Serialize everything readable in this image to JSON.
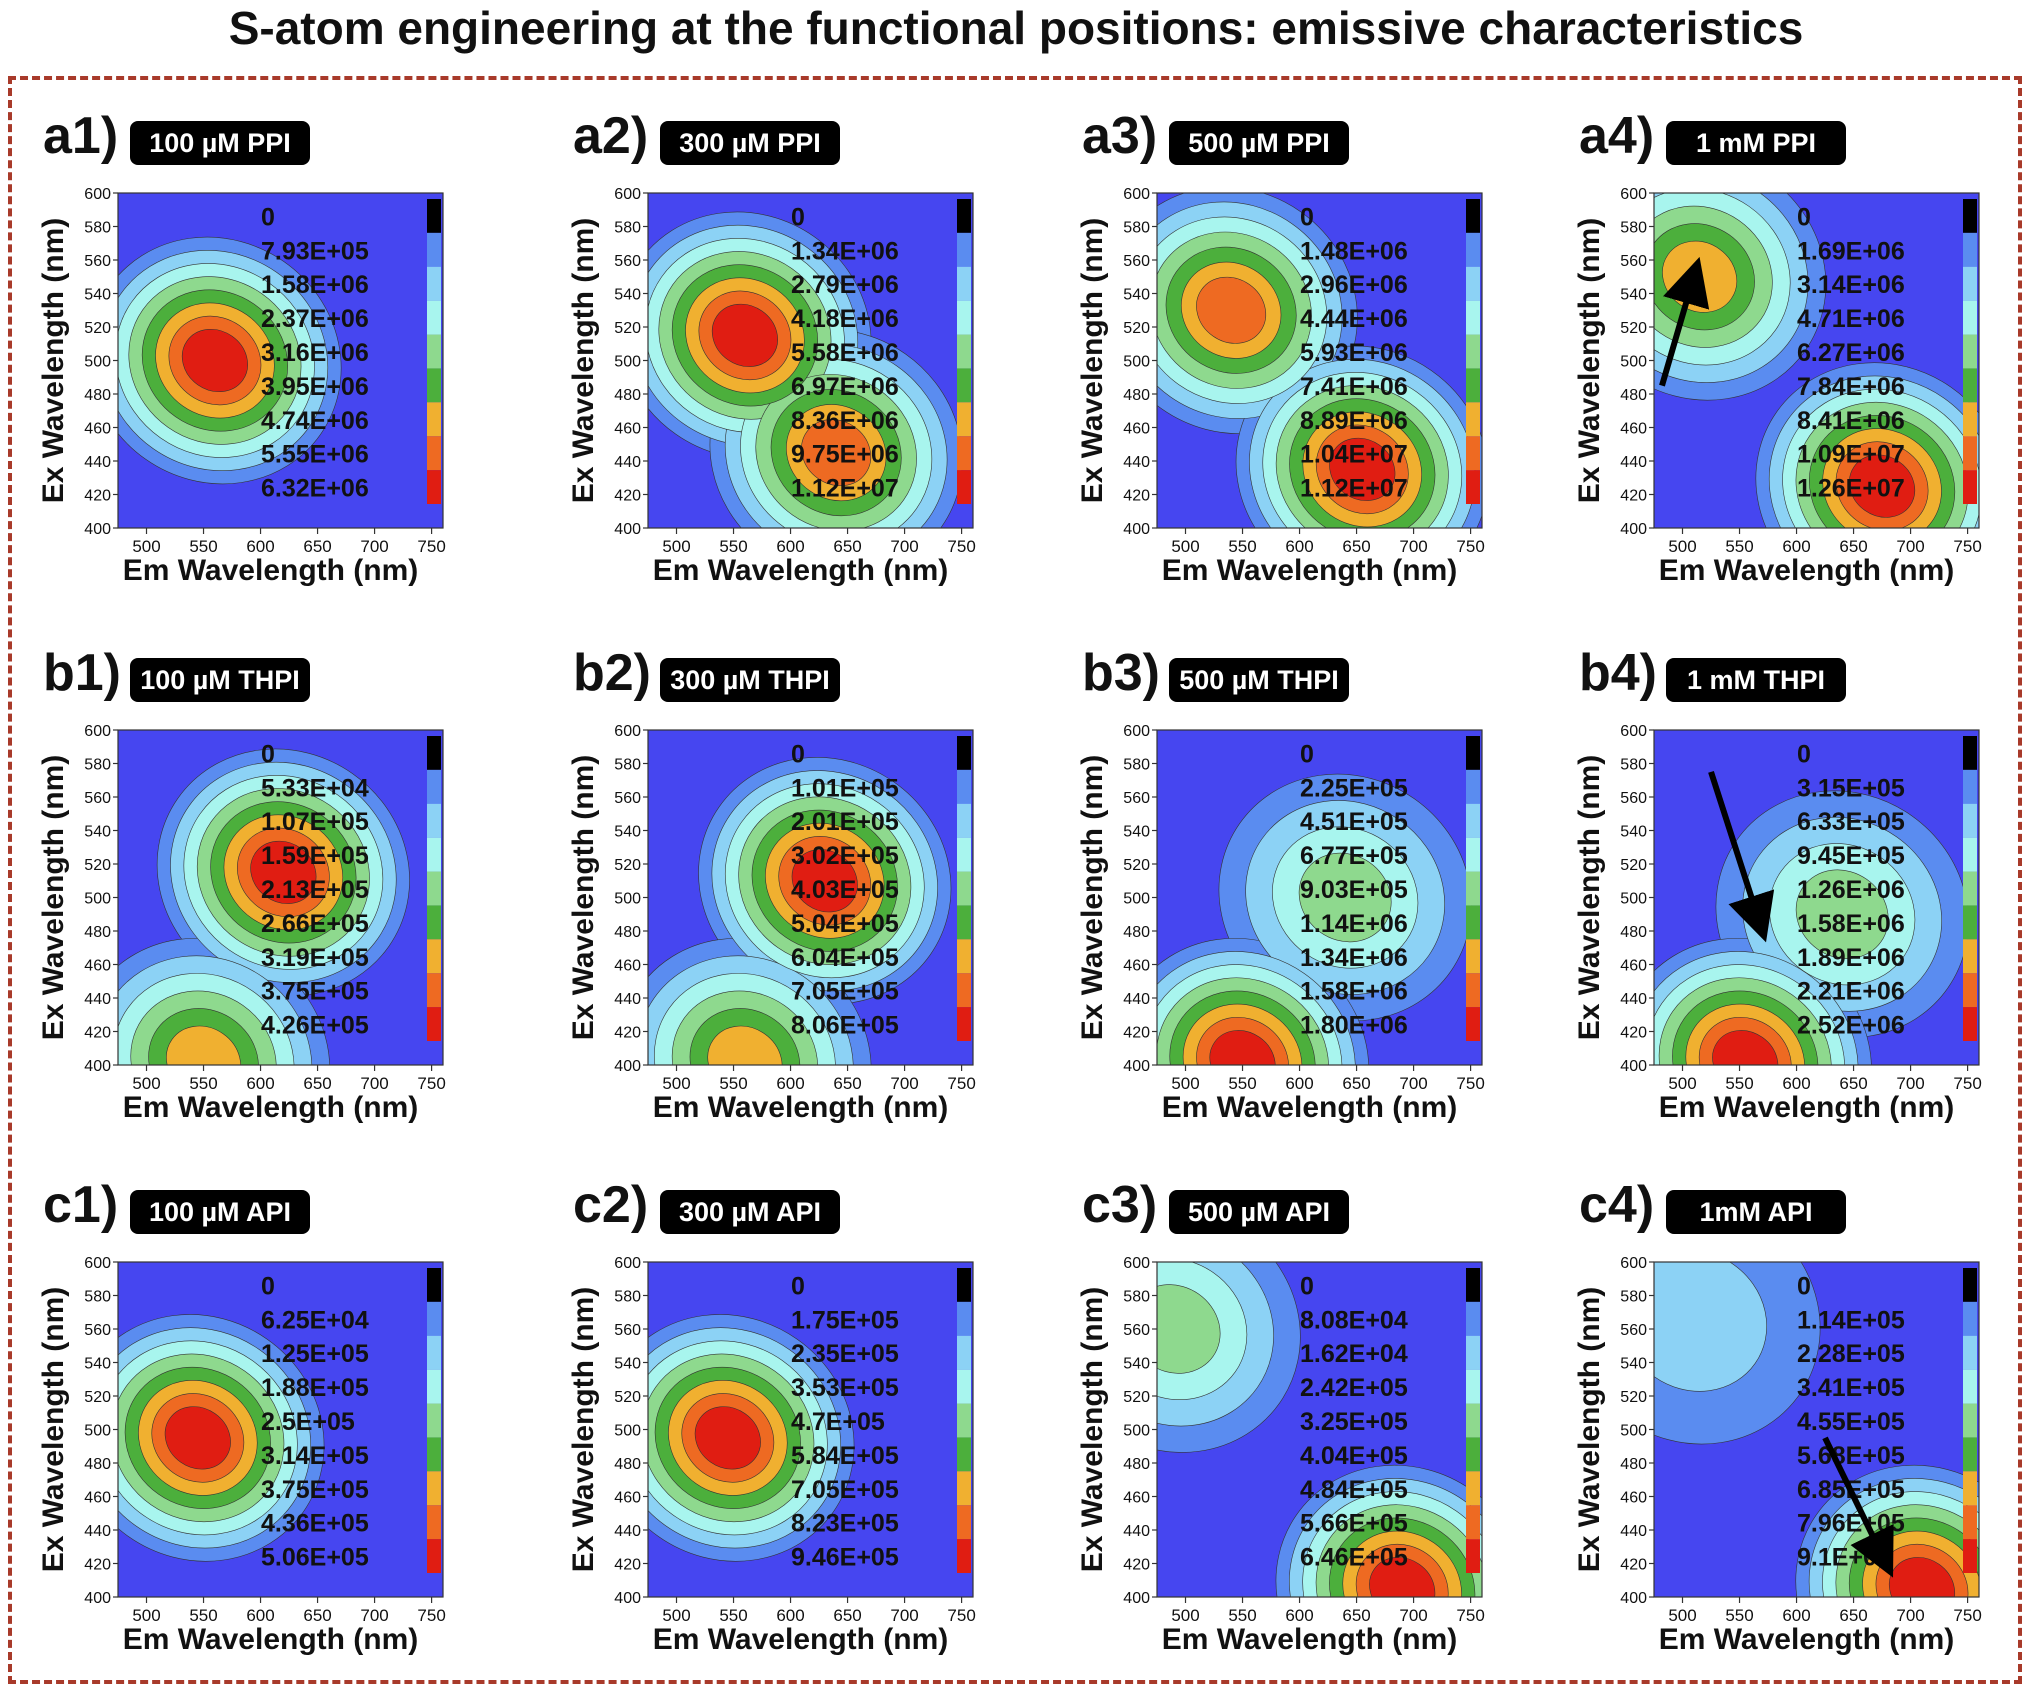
{
  "title": "S-atom engineering at the functional positions: emissive characteristics",
  "colors": {
    "levels": [
      "#4646f0",
      "#5a8cf0",
      "#8cd2f5",
      "#a8f5ee",
      "#8ed98e",
      "#4caf3c",
      "#f0b030",
      "#ee6a22",
      "#e01d12",
      "#ffffff"
    ],
    "label_box": "#000000",
    "frame": "#a83a2a",
    "arrow": "#000000"
  },
  "chart_data": [
    {
      "id": "a1",
      "type": "contour",
      "panel_label": "a1)",
      "sample_label": "100 µM PPI",
      "xlabel": "Em Wavelength (nm)",
      "ylabel": "Ex Wavelength (nm)",
      "xlim": [
        475,
        760
      ],
      "ylim": [
        400,
        600
      ],
      "x_ticks": [
        500,
        550,
        600,
        650,
        700,
        750
      ],
      "y_ticks": [
        400,
        420,
        440,
        460,
        480,
        500,
        520,
        540,
        560,
        580,
        600
      ],
      "legend_levels": [
        "0",
        "7.93E+05",
        "1.58E+06",
        "2.37E+06",
        "3.16E+06",
        "3.95E+06",
        "4.74E+06",
        "5.55E+06",
        "6.32E+06"
      ],
      "peaks": [
        {
          "x": 560,
          "y": 500,
          "intensity": 6320000.0
        }
      ]
    },
    {
      "id": "a2",
      "type": "contour",
      "panel_label": "a2)",
      "sample_label": "300 µM PPI",
      "xlabel": "Em Wavelength (nm)",
      "ylabel": "Ex Wavelength (nm)",
      "xlim": [
        475,
        760
      ],
      "ylim": [
        400,
        600
      ],
      "x_ticks": [
        500,
        550,
        600,
        650,
        700,
        750
      ],
      "y_ticks": [
        400,
        420,
        440,
        460,
        480,
        500,
        520,
        540,
        560,
        580,
        600
      ],
      "legend_levels": [
        "0",
        "1.34E+06",
        "2.79E+06",
        "4.18E+06",
        "5.58E+06",
        "6.97E+06",
        "8.36E+06",
        "9.75E+06",
        "1.12E+07"
      ],
      "peaks": [
        {
          "x": 560,
          "y": 515,
          "intensity": 11000000.0
        },
        {
          "x": 640,
          "y": 445,
          "intensity": 10000000.0
        }
      ]
    },
    {
      "id": "a3",
      "type": "contour",
      "panel_label": "a3)",
      "sample_label": "500 µM PPI",
      "xlabel": "Em Wavelength (nm)",
      "ylabel": "Ex Wavelength (nm)",
      "xlim": [
        475,
        760
      ],
      "ylim": [
        400,
        600
      ],
      "x_ticks": [
        500,
        550,
        600,
        650,
        700,
        750
      ],
      "y_ticks": [
        400,
        420,
        440,
        460,
        480,
        500,
        520,
        540,
        560,
        580,
        600
      ],
      "legend_levels": [
        "0",
        "1.48E+06",
        "2.96E+06",
        "4.44E+06",
        "5.93E+06",
        "7.41E+06",
        "8.89E+06",
        "1.04E+07",
        "1.12E+07"
      ],
      "peaks": [
        {
          "x": 540,
          "y": 530,
          "intensity": 9200000.0
        },
        {
          "x": 655,
          "y": 435,
          "intensity": 11200000.0
        }
      ]
    },
    {
      "id": "a4",
      "type": "contour",
      "panel_label": "a4)",
      "sample_label": "1 mM PPI",
      "xlabel": "Em Wavelength (nm)",
      "ylabel": "Ex Wavelength (nm)",
      "xlim": [
        475,
        760
      ],
      "ylim": [
        400,
        600
      ],
      "x_ticks": [
        500,
        550,
        600,
        650,
        700,
        750
      ],
      "y_ticks": [
        400,
        420,
        440,
        460,
        480,
        500,
        520,
        540,
        560,
        580,
        600
      ],
      "legend_levels": [
        "0",
        "1.69E+06",
        "3.14E+06",
        "4.71E+06",
        "6.27E+06",
        "7.84E+06",
        "8.41E+06",
        "1.09E+07",
        "1.26E+07"
      ],
      "peaks": [
        {
          "x": 515,
          "y": 550,
          "intensity": 9000000.0
        },
        {
          "x": 675,
          "y": 425,
          "intensity": 12600000.0
        }
      ],
      "arrow": {
        "from": [
          482,
          485
        ],
        "to": [
          512,
          555
        ]
      }
    },
    {
      "id": "b1",
      "type": "contour",
      "panel_label": "b1)",
      "sample_label": "100 µM THPI",
      "xlabel": "Em Wavelength (nm)",
      "ylabel": "Ex Wavelength (nm)",
      "xlim": [
        475,
        760
      ],
      "ylim": [
        400,
        600
      ],
      "x_ticks": [
        500,
        550,
        600,
        650,
        700,
        750
      ],
      "y_ticks": [
        400,
        420,
        440,
        460,
        480,
        500,
        520,
        540,
        560,
        580,
        600
      ],
      "legend_levels": [
        "0",
        "5.33E+04",
        "1.07E+05",
        "1.59E+05",
        "2.13E+05",
        "2.66E+05",
        "3.19E+05",
        "3.75E+05",
        "4.26E+05"
      ],
      "peaks": [
        {
          "x": 620,
          "y": 515,
          "intensity": 426000.0
        },
        {
          "x": 550,
          "y": 402,
          "intensity": 330000.0
        }
      ]
    },
    {
      "id": "b2",
      "type": "contour",
      "panel_label": "b2)",
      "sample_label": "300 µM THPI",
      "xlabel": "Em Wavelength (nm)",
      "ylabel": "Ex Wavelength (nm)",
      "xlim": [
        475,
        760
      ],
      "ylim": [
        400,
        600
      ],
      "x_ticks": [
        500,
        550,
        600,
        650,
        700,
        750
      ],
      "y_ticks": [
        400,
        420,
        440,
        460,
        480,
        500,
        520,
        540,
        560,
        580,
        600
      ],
      "legend_levels": [
        "0",
        "1.01E+05",
        "2.01E+05",
        "3.02E+05",
        "4.03E+05",
        "5.04E+05",
        "6.04E+05",
        "7.05E+05",
        "8.06E+05"
      ],
      "peaks": [
        {
          "x": 630,
          "y": 510,
          "intensity": 806000.0
        },
        {
          "x": 560,
          "y": 402,
          "intensity": 600000.0
        }
      ]
    },
    {
      "id": "b3",
      "type": "contour",
      "panel_label": "b3)",
      "sample_label": "500 µM THPI",
      "xlabel": "Em Wavelength (nm)",
      "ylabel": "Ex Wavelength (nm)",
      "xlim": [
        475,
        760
      ],
      "ylim": [
        400,
        600
      ],
      "x_ticks": [
        500,
        550,
        600,
        650,
        700,
        750
      ],
      "y_ticks": [
        400,
        420,
        440,
        460,
        480,
        500,
        520,
        540,
        560,
        580,
        600
      ],
      "legend_levels": [
        "0",
        "2.25E+05",
        "4.51E+05",
        "6.77E+05",
        "9.03E+05",
        "1.14E+06",
        "1.34E+06",
        "1.58E+06",
        "1.80E+06"
      ],
      "peaks": [
        {
          "x": 640,
          "y": 500,
          "intensity": 950000.0
        },
        {
          "x": 550,
          "y": 402,
          "intensity": 1800000.0
        }
      ]
    },
    {
      "id": "b4",
      "type": "contour",
      "panel_label": "b4)",
      "sample_label": "1 mM THPI",
      "xlabel": "Em Wavelength (nm)",
      "ylabel": "Ex Wavelength (nm)",
      "xlim": [
        475,
        760
      ],
      "ylim": [
        400,
        600
      ],
      "x_ticks": [
        500,
        550,
        600,
        650,
        700,
        750
      ],
      "y_ticks": [
        400,
        420,
        440,
        460,
        480,
        500,
        520,
        540,
        560,
        580,
        600
      ],
      "legend_levels": [
        "0",
        "3.15E+05",
        "6.33E+05",
        "9.45E+05",
        "1.26E+06",
        "1.58E+06",
        "1.89E+06",
        "2.21E+06",
        "2.52E+06"
      ],
      "peaks": [
        {
          "x": 640,
          "y": 490,
          "intensity": 1300000.0
        },
        {
          "x": 555,
          "y": 402,
          "intensity": 2520000.0
        }
      ],
      "arrow": {
        "from": [
          525,
          575
        ],
        "to": [
          570,
          480
        ]
      }
    },
    {
      "id": "c1",
      "type": "contour",
      "panel_label": "c1)",
      "sample_label": "100 µM API",
      "xlabel": "Em Wavelength (nm)",
      "ylabel": "Ex Wavelength (nm)",
      "xlim": [
        475,
        760
      ],
      "ylim": [
        400,
        600
      ],
      "x_ticks": [
        500,
        550,
        600,
        650,
        700,
        750
      ],
      "y_ticks": [
        400,
        420,
        440,
        460,
        480,
        500,
        520,
        540,
        560,
        580,
        600
      ],
      "legend_levels": [
        "0",
        "6.25E+04",
        "1.25E+05",
        "1.88E+05",
        "2.5E+05",
        "3.14E+05",
        "3.75E+05",
        "4.36E+05",
        "5.06E+05"
      ],
      "peaks": [
        {
          "x": 545,
          "y": 495,
          "intensity": 506000.0
        }
      ]
    },
    {
      "id": "c2",
      "type": "contour",
      "panel_label": "c2)",
      "sample_label": "300 µM API",
      "xlabel": "Em Wavelength (nm)",
      "ylabel": "Ex Wavelength (nm)",
      "xlim": [
        475,
        760
      ],
      "ylim": [
        400,
        600
      ],
      "x_ticks": [
        500,
        550,
        600,
        650,
        700,
        750
      ],
      "y_ticks": [
        400,
        420,
        440,
        460,
        480,
        500,
        520,
        540,
        560,
        580,
        600
      ],
      "legend_levels": [
        "0",
        "1.75E+05",
        "2.35E+05",
        "3.53E+05",
        "4.7E+05",
        "5.84E+05",
        "7.05E+05",
        "8.23E+05",
        "9.46E+05"
      ],
      "peaks": [
        {
          "x": 545,
          "y": 495,
          "intensity": 946000.0
        }
      ]
    },
    {
      "id": "c3",
      "type": "contour",
      "panel_label": "c3)",
      "sample_label": "500 µM API",
      "xlabel": "Em Wavelength (nm)",
      "ylabel": "Ex Wavelength (nm)",
      "xlim": [
        475,
        760
      ],
      "ylim": [
        400,
        600
      ],
      "x_ticks": [
        500,
        550,
        600,
        650,
        700,
        750
      ],
      "y_ticks": [
        400,
        420,
        440,
        460,
        480,
        500,
        520,
        540,
        560,
        580,
        600
      ],
      "legend_levels": [
        "0",
        "8.08E+04",
        "1.62E+04",
        "2.42E+05",
        "3.25E+05",
        "4.04E+05",
        "4.84E+05",
        "5.66E+05",
        "6.46E+05"
      ],
      "peaks": [
        {
          "x": 490,
          "y": 560,
          "intensity": 300000.0
        },
        {
          "x": 690,
          "y": 405,
          "intensity": 646000.0
        }
      ]
    },
    {
      "id": "c4",
      "type": "contour",
      "panel_label": "c4)",
      "sample_label": "1mM API",
      "xlabel": "Em Wavelength (nm)",
      "ylabel": "Ex Wavelength (nm)",
      "xlim": [
        475,
        760
      ],
      "ylim": [
        400,
        600
      ],
      "x_ticks": [
        500,
        550,
        600,
        650,
        700,
        750
      ],
      "y_ticks": [
        400,
        420,
        440,
        460,
        480,
        500,
        520,
        540,
        560,
        580,
        600
      ],
      "legend_levels": [
        "0",
        "1.14E+05",
        "2.28E+05",
        "3.41E+05",
        "4.55E+05",
        "5.68E+05",
        "6.85E+05",
        "7.96E+05",
        "9.1E+05"
      ],
      "peaks": [
        {
          "x": 510,
          "y": 565,
          "intensity": 250000.0
        },
        {
          "x": 710,
          "y": 405,
          "intensity": 910000.0
        }
      ],
      "arrow": {
        "from": [
          625,
          495
        ],
        "to": [
          680,
          418
        ]
      }
    }
  ]
}
